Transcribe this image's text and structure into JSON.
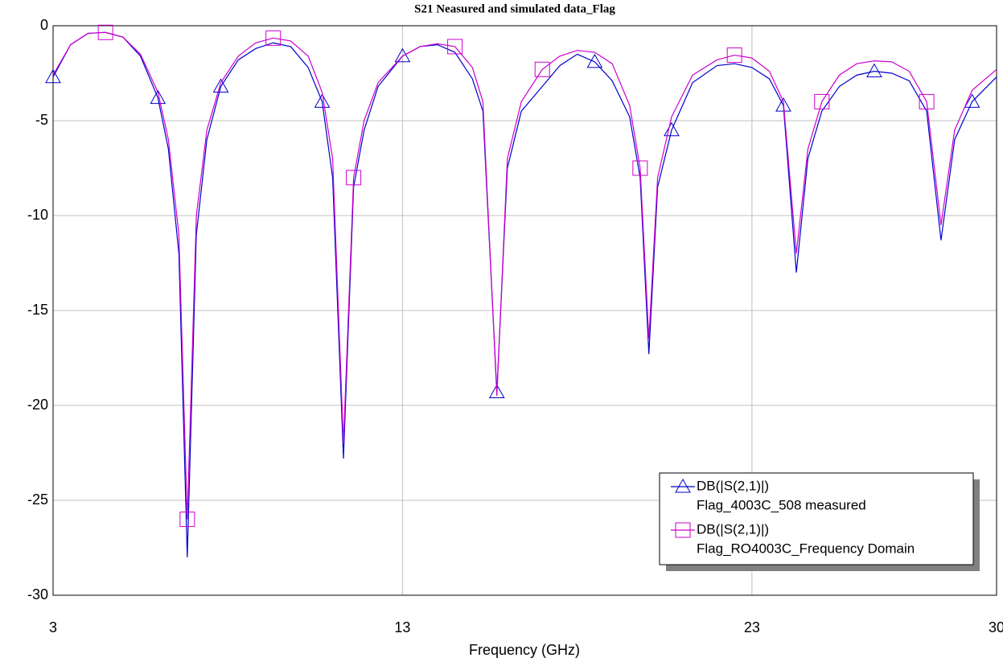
{
  "chart_data": {
    "type": "line",
    "title": "S21 Neasured and simulated data_Flag",
    "x_label": "Frequency (GHz)",
    "x": [
      3,
      3.5,
      4,
      4.5,
      5,
      5.5,
      6,
      6.3,
      6.6,
      6.84,
      7.1,
      7.4,
      7.8,
      8.3,
      8.8,
      9.3,
      9.8,
      10.3,
      10.7,
      11.0,
      11.31,
      11.6,
      11.9,
      12.3,
      13,
      13.5,
      14,
      14.5,
      15,
      15.3,
      15.7,
      16.0,
      16.4,
      17,
      17.5,
      18,
      18.5,
      19,
      19.5,
      19.8,
      20.05,
      20.3,
      20.7,
      21.3,
      22,
      22.5,
      23,
      23.5,
      23.9,
      24.27,
      24.6,
      25,
      25.5,
      26,
      26.5,
      27,
      27.5,
      28,
      28.41,
      28.8,
      29.3,
      30
    ],
    "series": [
      {
        "name": "DB(|S(2,1)|)",
        "source": "Flag_4003C_508 measured",
        "color": "#0000cc",
        "marker": "triangle",
        "values": [
          -2.7,
          -1.0,
          -0.4,
          -0.35,
          -0.6,
          -1.6,
          -3.8,
          -6.5,
          -12,
          -28,
          -11,
          -6,
          -3.2,
          -1.8,
          -1.2,
          -0.9,
          -1.1,
          -2.2,
          -4,
          -8,
          -22.8,
          -8.5,
          -5.5,
          -3.2,
          -1.6,
          -1.1,
          -1.0,
          -1.4,
          -2.8,
          -4.5,
          -19.3,
          -7.5,
          -4.5,
          -3.2,
          -2.1,
          -1.5,
          -1.9,
          -2.9,
          -4.8,
          -8,
          -17.3,
          -8.5,
          -5.5,
          -3,
          -2.1,
          -2.0,
          -2.2,
          -2.8,
          -4.2,
          -13,
          -7,
          -4.5,
          -3.2,
          -2.6,
          -2.4,
          -2.5,
          -2.9,
          -4.5,
          -11.3,
          -6,
          -4,
          -2.7
        ]
      },
      {
        "name": "DB(|S(2,1)|)",
        "source": "Flag_RO4003C_Frequency Domain",
        "color": "#cc00cc",
        "marker": "square",
        "values": [
          -2.6,
          -1.0,
          -0.4,
          -0.35,
          -0.6,
          -1.5,
          -3.5,
          -6,
          -11,
          -26,
          -10,
          -5.5,
          -3,
          -1.6,
          -0.9,
          -0.65,
          -0.8,
          -1.6,
          -3.5,
          -7,
          -22,
          -8,
          -5,
          -3,
          -1.6,
          -1.1,
          -0.95,
          -1.1,
          -2.2,
          -4,
          -19.5,
          -7,
          -4,
          -2.3,
          -1.6,
          -1.3,
          -1.4,
          -2,
          -4.2,
          -7.5,
          -16.5,
          -8,
          -4.8,
          -2.6,
          -1.8,
          -1.55,
          -1.7,
          -2.4,
          -4,
          -12,
          -6.5,
          -4,
          -2.6,
          -2,
          -1.85,
          -1.9,
          -2.4,
          -4,
          -10.5,
          -5.5,
          -3.4,
          -2.3
        ]
      }
    ],
    "xlim": [
      3,
      30
    ],
    "xticks": [
      3,
      13,
      23,
      30
    ],
    "ylim": [
      -30,
      0
    ],
    "yticks": [
      0,
      -5,
      -10,
      -15,
      -20,
      -25,
      -30
    ],
    "grid": true,
    "legend_position": "lower right"
  }
}
